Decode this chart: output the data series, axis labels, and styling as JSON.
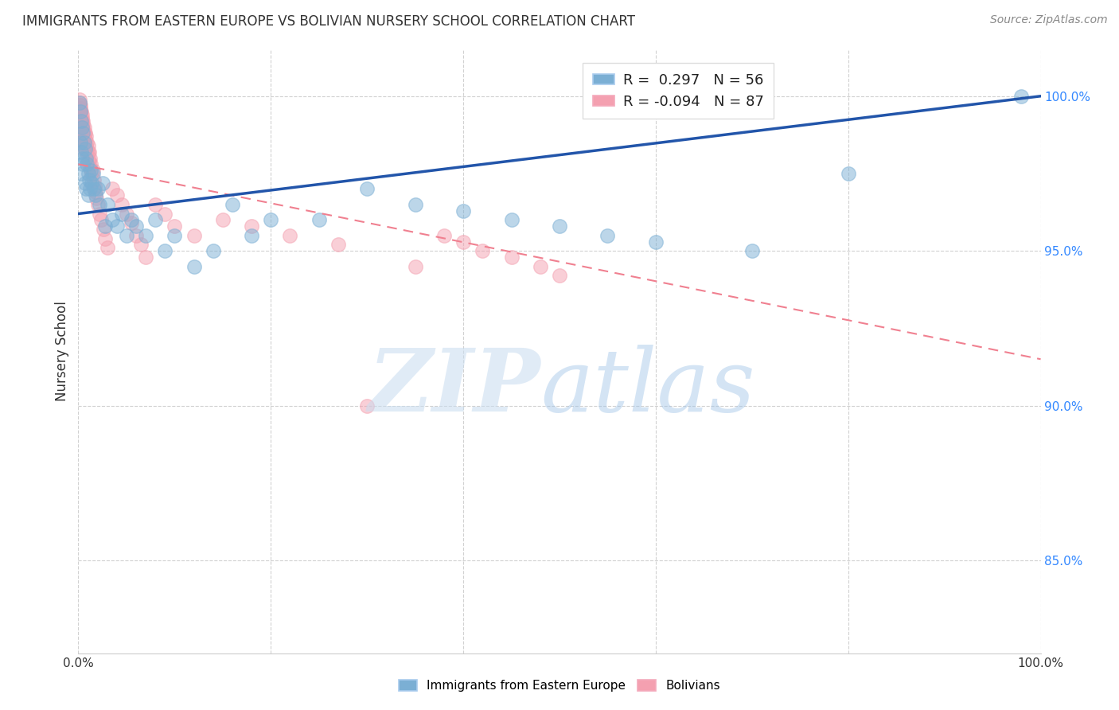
{
  "title": "IMMIGRANTS FROM EASTERN EUROPE VS BOLIVIAN NURSERY SCHOOL CORRELATION CHART",
  "source": "Source: ZipAtlas.com",
  "ylabel": "Nursery School",
  "r_blue": 0.297,
  "n_blue": 56,
  "r_pink": -0.094,
  "n_pink": 87,
  "blue_color": "#7BAFD4",
  "pink_color": "#F4A0B0",
  "blue_line_color": "#2255AA",
  "pink_line_color": "#F08090",
  "ytick_labels": [
    "85.0%",
    "90.0%",
    "95.0%",
    "100.0%"
  ],
  "ytick_values": [
    85.0,
    90.0,
    95.0,
    100.0
  ],
  "xlim": [
    0.0,
    100.0
  ],
  "ylim": [
    82.0,
    101.5
  ],
  "blue_scatter_x": [
    0.1,
    0.2,
    0.2,
    0.3,
    0.3,
    0.3,
    0.4,
    0.4,
    0.5,
    0.5,
    0.6,
    0.7,
    0.7,
    0.8,
    0.8,
    0.9,
    1.0,
    1.0,
    1.1,
    1.2,
    1.3,
    1.4,
    1.5,
    1.6,
    1.8,
    2.0,
    2.2,
    2.5,
    2.8,
    3.0,
    3.5,
    4.0,
    4.5,
    5.0,
    5.5,
    6.0,
    7.0,
    8.0,
    9.0,
    10.0,
    12.0,
    14.0,
    16.0,
    18.0,
    20.0,
    25.0,
    30.0,
    35.0,
    40.0,
    45.0,
    50.0,
    55.0,
    60.0,
    70.0,
    80.0,
    98.0
  ],
  "blue_scatter_y": [
    99.8,
    99.5,
    98.5,
    99.2,
    98.2,
    97.5,
    99.0,
    98.0,
    98.8,
    97.8,
    98.5,
    98.3,
    97.2,
    98.0,
    97.0,
    97.8,
    97.5,
    96.8,
    97.3,
    97.0,
    97.6,
    97.2,
    97.5,
    97.0,
    96.8,
    97.0,
    96.5,
    97.2,
    95.8,
    96.5,
    96.0,
    95.8,
    96.2,
    95.5,
    96.0,
    95.8,
    95.5,
    96.0,
    95.0,
    95.5,
    94.5,
    95.0,
    96.5,
    95.5,
    96.0,
    96.0,
    97.0,
    96.5,
    96.3,
    96.0,
    95.8,
    95.5,
    95.3,
    95.0,
    97.5,
    100.0
  ],
  "pink_scatter_x": [
    0.1,
    0.1,
    0.1,
    0.15,
    0.15,
    0.15,
    0.15,
    0.2,
    0.2,
    0.2,
    0.2,
    0.25,
    0.25,
    0.25,
    0.3,
    0.3,
    0.3,
    0.3,
    0.3,
    0.35,
    0.35,
    0.35,
    0.4,
    0.4,
    0.4,
    0.4,
    0.45,
    0.45,
    0.5,
    0.5,
    0.5,
    0.5,
    0.5,
    0.6,
    0.6,
    0.6,
    0.7,
    0.7,
    0.7,
    0.8,
    0.8,
    0.9,
    0.9,
    1.0,
    1.0,
    1.0,
    1.1,
    1.1,
    1.2,
    1.2,
    1.3,
    1.4,
    1.5,
    1.6,
    1.7,
    1.8,
    1.9,
    2.0,
    2.2,
    2.4,
    2.6,
    2.8,
    3.0,
    3.5,
    4.0,
    4.5,
    5.0,
    5.5,
    6.0,
    6.5,
    7.0,
    8.0,
    9.0,
    10.0,
    12.0,
    15.0,
    18.0,
    22.0,
    27.0,
    30.0,
    35.0,
    38.0,
    40.0,
    42.0,
    45.0,
    48.0,
    50.0
  ],
  "pink_scatter_y": [
    99.9,
    99.7,
    99.5,
    99.8,
    99.6,
    99.4,
    99.2,
    99.7,
    99.5,
    99.3,
    99.1,
    99.6,
    99.4,
    99.2,
    99.5,
    99.3,
    99.1,
    98.9,
    98.7,
    99.4,
    99.2,
    99.0,
    99.3,
    99.1,
    98.9,
    98.6,
    99.2,
    99.0,
    99.1,
    98.9,
    98.7,
    98.5,
    98.3,
    99.0,
    98.8,
    98.5,
    98.8,
    98.6,
    98.3,
    98.7,
    98.4,
    98.5,
    98.2,
    98.4,
    98.2,
    97.9,
    98.2,
    97.9,
    98.0,
    97.7,
    97.8,
    97.5,
    97.6,
    97.3,
    97.1,
    96.9,
    96.7,
    96.5,
    96.2,
    96.0,
    95.7,
    95.4,
    95.1,
    97.0,
    96.8,
    96.5,
    96.2,
    95.9,
    95.5,
    95.2,
    94.8,
    96.5,
    96.2,
    95.8,
    95.5,
    96.0,
    95.8,
    95.5,
    95.2,
    90.0,
    94.5,
    95.5,
    95.3,
    95.0,
    94.8,
    94.5,
    94.2
  ],
  "blue_line_x": [
    0.0,
    100.0
  ],
  "blue_line_y": [
    96.2,
    100.0
  ],
  "pink_line_x": [
    0.0,
    100.0
  ],
  "pink_line_y": [
    97.8,
    91.5
  ]
}
